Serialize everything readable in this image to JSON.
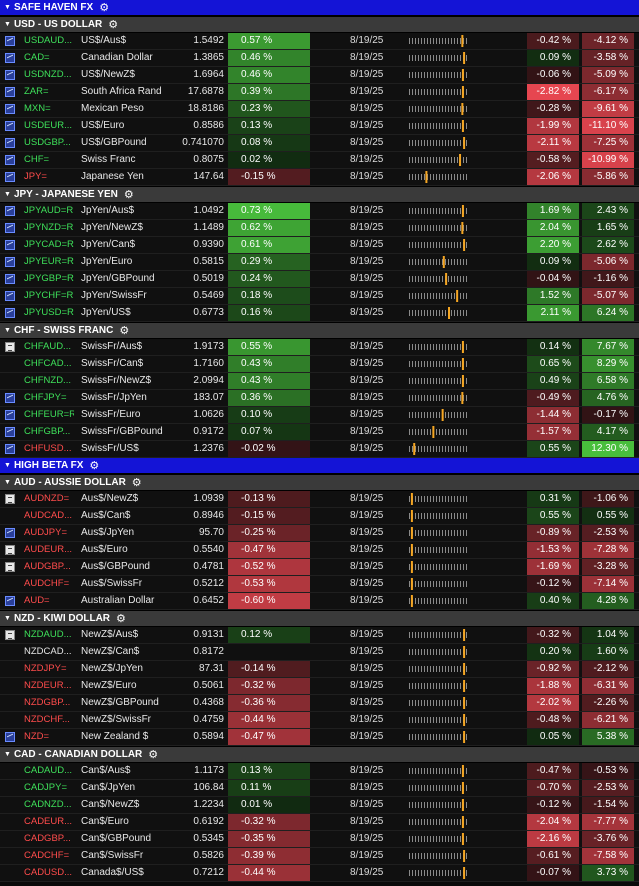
{
  "date_label": "8/19/25",
  "sections": [
    {
      "title": "SAFE HAVEN FX",
      "groups": [
        {
          "title": "USD - US DOLLAR",
          "rows": [
            {
              "icon": "chart",
              "ric": "USDAUD...",
              "ric_color": "up",
              "name": "US$/Aus$",
              "price": "1.5492",
              "pct": "0.57 %",
              "pct_val": 0.57,
              "c1": "-0.42 %",
              "c1_val": -0.42,
              "c2": "-4.12 %",
              "c2_val": -4.12,
              "pos": 0.92
            },
            {
              "icon": "chart",
              "ric": "CAD=",
              "ric_color": "up",
              "name": "Canadian Dollar",
              "price": "1.3865",
              "pct": "0.46 %",
              "pct_val": 0.46,
              "c1": "0.09 %",
              "c1_val": 0.09,
              "c2": "-3.58 %",
              "c2_val": -3.58,
              "pos": 0.95
            },
            {
              "icon": "chart",
              "ric": "USDNZD...",
              "ric_color": "up",
              "name": "US$/NewZ$",
              "price": "1.6964",
              "pct": "0.46 %",
              "pct_val": 0.46,
              "c1": "-0.06 %",
              "c1_val": -0.06,
              "c2": "-5.09 %",
              "c2_val": -5.09,
              "pos": 0.93
            },
            {
              "icon": "chart",
              "ric": "ZAR=",
              "ric_color": "up",
              "name": "South Africa Rand",
              "price": "17.6878",
              "pct": "0.39 %",
              "pct_val": 0.39,
              "c1": "-2.82 %",
              "c1_val": -2.82,
              "c2": "-6.17 %",
              "c2_val": -6.17,
              "pos": 0.93
            },
            {
              "icon": "chart",
              "ric": "MXN=",
              "ric_color": "up",
              "name": "Mexican Peso",
              "price": "18.8186",
              "pct": "0.23 %",
              "pct_val": 0.23,
              "c1": "-0.28 %",
              "c1_val": -0.28,
              "c2": "-9.61 %",
              "c2_val": -9.61,
              "pos": 0.92
            },
            {
              "icon": "chart",
              "ric": "USDEUR...",
              "ric_color": "up",
              "name": "US$/Euro",
              "price": "0.8586",
              "pct": "0.13 %",
              "pct_val": 0.13,
              "c1": "-1.99 %",
              "c1_val": -1.99,
              "c2": "-11.10 %",
              "c2_val": -11.1,
              "pos": 0.93
            },
            {
              "icon": "chart",
              "ric": "USDGBP...",
              "ric_color": "up",
              "name": "US$/GBPound",
              "price": "0.741070",
              "pct": "0.08 %",
              "pct_val": 0.08,
              "c1": "-2.11 %",
              "c1_val": -2.11,
              "c2": "-7.25 %",
              "c2_val": -7.25,
              "pos": 0.95
            },
            {
              "icon": "chart",
              "ric": "CHF=",
              "ric_color": "up",
              "name": "Swiss Franc",
              "price": "0.8075",
              "pct": "0.02 %",
              "pct_val": 0.02,
              "c1": "-0.58 %",
              "c1_val": -0.58,
              "c2": "-10.99 %",
              "c2_val": -10.99,
              "pos": 0.88
            },
            {
              "icon": "chart",
              "ric": "JPY=",
              "ric_color": "dn",
              "name": "Japanese Yen",
              "price": "147.64",
              "pct": "-0.15 %",
              "pct_val": -0.15,
              "c1": "-2.06 %",
              "c1_val": -2.06,
              "c2": "-5.86 %",
              "c2_val": -5.86,
              "pos": 0.3
            }
          ]
        },
        {
          "title": "JPY - JAPANESE YEN",
          "rows": [
            {
              "icon": "chart",
              "ric": "JPYAUD=R",
              "ric_color": "up",
              "name": "JpYen/Aus$",
              "price": "1.0492",
              "pct": "0.73 %",
              "pct_val": 0.73,
              "c1": "1.69 %",
              "c1_val": 1.69,
              "c2": "2.43 %",
              "c2_val": 2.43,
              "pos": 0.93
            },
            {
              "icon": "chart",
              "ric": "JPYNZD=R",
              "ric_color": "up",
              "name": "JpYen/NewZ$",
              "price": "1.1489",
              "pct": "0.62 %",
              "pct_val": 0.62,
              "c1": "2.04 %",
              "c1_val": 2.04,
              "c2": "1.65 %",
              "c2_val": 1.65,
              "pos": 0.92
            },
            {
              "icon": "chart",
              "ric": "JPYCAD=R",
              "ric_color": "up",
              "name": "JpYen/Can$",
              "price": "0.9390",
              "pct": "0.61 %",
              "pct_val": 0.61,
              "c1": "2.20 %",
              "c1_val": 2.2,
              "c2": "2.62 %",
              "c2_val": 2.62,
              "pos": 0.95
            },
            {
              "icon": "chart",
              "ric": "JPYEUR=R",
              "ric_color": "up",
              "name": "JpYen/Euro",
              "price": "0.5815",
              "pct": "0.29 %",
              "pct_val": 0.29,
              "c1": "0.09 %",
              "c1_val": 0.09,
              "c2": "-5.06 %",
              "c2_val": -5.06,
              "pos": 0.6
            },
            {
              "icon": "chart",
              "ric": "JPYGBP=R",
              "ric_color": "up",
              "name": "JpYen/GBPound",
              "price": "0.5019",
              "pct": "0.24 %",
              "pct_val": 0.24,
              "c1": "-0.04 %",
              "c1_val": -0.04,
              "c2": "-1.16 %",
              "c2_val": -1.16,
              "pos": 0.64
            },
            {
              "icon": "chart",
              "ric": "JPYCHF=R",
              "ric_color": "up",
              "name": "JpYen/SwissFr",
              "price": "0.5469",
              "pct": "0.18 %",
              "pct_val": 0.18,
              "c1": "1.52 %",
              "c1_val": 1.52,
              "c2": "-5.07 %",
              "c2_val": -5.07,
              "pos": 0.83
            },
            {
              "icon": "chart",
              "ric": "JPYUSD=R",
              "ric_color": "up",
              "name": "JpYen/US$",
              "price": "0.6773",
              "pct": "0.16 %",
              "pct_val": 0.16,
              "c1": "2.11 %",
              "c1_val": 2.11,
              "c2": "6.24 %",
              "c2_val": 6.24,
              "pos": 0.69
            }
          ]
        },
        {
          "title": "CHF - SWISS FRANC",
          "rows": [
            {
              "icon": "news",
              "ric": "CHFAUD...",
              "ric_color": "up",
              "name": "SwissFr/Aus$",
              "price": "1.9173",
              "pct": "0.55 %",
              "pct_val": 0.55,
              "c1": "0.14 %",
              "c1_val": 0.14,
              "c2": "7.67 %",
              "c2_val": 7.67,
              "pos": 0.93
            },
            {
              "icon": "none",
              "ric": "CHFCAD...",
              "ric_color": "up",
              "name": "SwissFr/Can$",
              "price": "1.7160",
              "pct": "0.43 %",
              "pct_val": 0.43,
              "c1": "0.65 %",
              "c1_val": 0.65,
              "c2": "8.29 %",
              "c2_val": 8.29,
              "pos": 0.93
            },
            {
              "icon": "none",
              "ric": "CHFNZD...",
              "ric_color": "up",
              "name": "SwissFr/NewZ$",
              "price": "2.0994",
              "pct": "0.43 %",
              "pct_val": 0.43,
              "c1": "0.49 %",
              "c1_val": 0.49,
              "c2": "6.58 %",
              "c2_val": 6.58,
              "pos": 0.93
            },
            {
              "icon": "chart",
              "ric": "CHFJPY=",
              "ric_color": "up",
              "name": "SwissFr/JpYen",
              "price": "183.07",
              "pct": "0.36 %",
              "pct_val": 0.36,
              "c1": "-0.49 %",
              "c1_val": -0.49,
              "c2": "4.76 %",
              "c2_val": 4.76,
              "pos": 0.92
            },
            {
              "icon": "chart",
              "ric": "CHFEUR=R",
              "ric_color": "up",
              "name": "SwissFr/Euro",
              "price": "1.0626",
              "pct": "0.10 %",
              "pct_val": 0.1,
              "c1": "-1.44 %",
              "c1_val": -1.44,
              "c2": "-0.17 %",
              "c2_val": -0.17,
              "pos": 0.58
            },
            {
              "icon": "chart",
              "ric": "CHFGBP...",
              "ric_color": "up",
              "name": "SwissFr/GBPound",
              "price": "0.9172",
              "pct": "0.07 %",
              "pct_val": 0.07,
              "c1": "-1.57 %",
              "c1_val": -1.57,
              "c2": "4.17 %",
              "c2_val": 4.17,
              "pos": 0.42
            },
            {
              "icon": "chart",
              "ric": "CHFUSD...",
              "ric_color": "dn",
              "name": "SwissFr/US$",
              "price": "1.2376",
              "pct": "-0.02 %",
              "pct_val": -0.02,
              "c1": "0.55 %",
              "c1_val": 0.55,
              "c2": "12.30 %",
              "c2_val": 12.3,
              "pos": 0.09
            }
          ]
        }
      ]
    },
    {
      "title": "HIGH BETA FX",
      "groups": [
        {
          "title": "AUD - AUSSIE DOLLAR",
          "rows": [
            {
              "icon": "news",
              "ric": "AUDNZD=",
              "ric_color": "dn",
              "name": "Aus$/NewZ$",
              "price": "1.0939",
              "pct": "-0.13 %",
              "pct_val": -0.13,
              "c1": "0.31 %",
              "c1_val": 0.31,
              "c2": "-1.06 %",
              "c2_val": -1.06,
              "pos": 0.05
            },
            {
              "icon": "none",
              "ric": "AUDCAD...",
              "ric_color": "dn",
              "name": "Aus$/Can$",
              "price": "0.8946",
              "pct": "-0.15 %",
              "pct_val": -0.15,
              "c1": "0.55 %",
              "c1_val": 0.55,
              "c2": "0.55 %",
              "c2_val": 0.55,
              "pos": 0.05
            },
            {
              "icon": "chart",
              "ric": "AUDJPY=",
              "ric_color": "dn",
              "name": "Aus$/JpYen",
              "price": "95.70",
              "pct": "-0.25 %",
              "pct_val": -0.25,
              "c1": "-0.89 %",
              "c1_val": -0.89,
              "c2": "-2.53 %",
              "c2_val": -2.53,
              "pos": 0.05
            },
            {
              "icon": "news",
              "ric": "AUDEUR...",
              "ric_color": "dn",
              "name": "Aus$/Euro",
              "price": "0.5540",
              "pct": "-0.47 %",
              "pct_val": -0.47,
              "c1": "-1.53 %",
              "c1_val": -1.53,
              "c2": "-7.28 %",
              "c2_val": -7.28,
              "pos": 0.05
            },
            {
              "icon": "news",
              "ric": "AUDGBP...",
              "ric_color": "dn",
              "name": "Aus$/GBPound",
              "price": "0.4781",
              "pct": "-0.52 %",
              "pct_val": -0.52,
              "c1": "-1.69 %",
              "c1_val": -1.69,
              "c2": "-3.28 %",
              "c2_val": -3.28,
              "pos": 0.05
            },
            {
              "icon": "none",
              "ric": "AUDCHF=",
              "ric_color": "dn",
              "name": "Aus$/SwissFr",
              "price": "0.5212",
              "pct": "-0.53 %",
              "pct_val": -0.53,
              "c1": "-0.12 %",
              "c1_val": -0.12,
              "c2": "-7.14 %",
              "c2_val": -7.14,
              "pos": 0.05
            },
            {
              "icon": "chart",
              "ric": "AUD=",
              "ric_color": "dn",
              "name": "Australian Dollar",
              "price": "0.6452",
              "pct": "-0.60 %",
              "pct_val": -0.6,
              "c1": "0.40 %",
              "c1_val": 0.4,
              "c2": "4.28 %",
              "c2_val": 4.28,
              "pos": 0.05
            }
          ]
        },
        {
          "title": "NZD - KIWI DOLLAR",
          "rows": [
            {
              "icon": "news",
              "ric": "NZDAUD...",
              "ric_color": "up",
              "name": "NewZ$/Aus$",
              "price": "0.9131",
              "pct": "0.12 %",
              "pct_val": 0.12,
              "c1": "-0.32 %",
              "c1_val": -0.32,
              "c2": "1.04 %",
              "c2_val": 1.04,
              "pos": 0.95
            },
            {
              "icon": "none",
              "ric": "NZDCAD...",
              "ric_color": "wh",
              "name": "NewZ$/Can$",
              "price": "0.8172",
              "pct": "",
              "pct_val": 0,
              "c1": "0.20 %",
              "c1_val": 0.2,
              "c2": "1.60 %",
              "c2_val": 1.6,
              "pos": 0.95
            },
            {
              "icon": "none",
              "ric": "NZDJPY=",
              "ric_color": "dn",
              "name": "NewZ$/JpYen",
              "price": "87.31",
              "pct": "-0.14 %",
              "pct_val": -0.14,
              "c1": "-0.92 %",
              "c1_val": -0.92,
              "c2": "-2.12 %",
              "c2_val": -2.12,
              "pos": 0.95
            },
            {
              "icon": "none",
              "ric": "NZDEUR...",
              "ric_color": "dn",
              "name": "NewZ$/Euro",
              "price": "0.5061",
              "pct": "-0.32 %",
              "pct_val": -0.32,
              "c1": "-1.88 %",
              "c1_val": -1.88,
              "c2": "-6.31 %",
              "c2_val": -6.31,
              "pos": 0.95
            },
            {
              "icon": "none",
              "ric": "NZDGBP...",
              "ric_color": "dn",
              "name": "NewZ$/GBPound",
              "price": "0.4368",
              "pct": "-0.36 %",
              "pct_val": -0.36,
              "c1": "-2.02 %",
              "c1_val": -2.02,
              "c2": "-2.26 %",
              "c2_val": -2.26,
              "pos": 0.95
            },
            {
              "icon": "none",
              "ric": "NZDCHF...",
              "ric_color": "dn",
              "name": "NewZ$/SwissFr",
              "price": "0.4759",
              "pct": "-0.44 %",
              "pct_val": -0.44,
              "c1": "-0.48 %",
              "c1_val": -0.48,
              "c2": "-6.21 %",
              "c2_val": -6.21,
              "pos": 0.95
            },
            {
              "icon": "chart",
              "ric": "NZD=",
              "ric_color": "dn",
              "name": "New Zealand $",
              "price": "0.5894",
              "pct": "-0.47 %",
              "pct_val": -0.47,
              "c1": "0.05 %",
              "c1_val": 0.05,
              "c2": "5.38 %",
              "c2_val": 5.38,
              "pos": 0.95
            }
          ]
        },
        {
          "title": "CAD - CANADIAN DOLLAR",
          "rows": [
            {
              "icon": "none",
              "ric": "CADAUD...",
              "ric_color": "up",
              "name": "Can$/Aus$",
              "price": "1.1173",
              "pct": "0.13 %",
              "pct_val": 0.13,
              "c1": "-0.47 %",
              "c1_val": -0.47,
              "c2": "-0.53 %",
              "c2_val": -0.53,
              "pos": 0.93
            },
            {
              "icon": "none",
              "ric": "CADJPY=",
              "ric_color": "up",
              "name": "Can$/JpYen",
              "price": "106.84",
              "pct": "0.11 %",
              "pct_val": 0.11,
              "c1": "-0.70 %",
              "c1_val": -0.7,
              "c2": "-2.53 %",
              "c2_val": -2.53,
              "pos": 0.93
            },
            {
              "icon": "none",
              "ric": "CADNZD...",
              "ric_color": "up",
              "name": "Can$/NewZ$",
              "price": "1.2234",
              "pct": "0.01 %",
              "pct_val": 0.01,
              "c1": "-0.12 %",
              "c1_val": -0.12,
              "c2": "-1.54 %",
              "c2_val": -1.54,
              "pos": 0.93
            },
            {
              "icon": "none",
              "ric": "CADEUR...",
              "ric_color": "dn",
              "name": "Can$/Euro",
              "price": "0.6192",
              "pct": "-0.32 %",
              "pct_val": -0.32,
              "c1": "-2.04 %",
              "c1_val": -2.04,
              "c2": "-7.77 %",
              "c2_val": -7.77,
              "pos": 0.93
            },
            {
              "icon": "none",
              "ric": "CADGBP...",
              "ric_color": "dn",
              "name": "Can$/GBPound",
              "price": "0.5345",
              "pct": "-0.35 %",
              "pct_val": -0.35,
              "c1": "-2.16 %",
              "c1_val": -2.16,
              "c2": "-3.76 %",
              "c2_val": -3.76,
              "pos": 0.93
            },
            {
              "icon": "none",
              "ric": "CADCHF=",
              "ric_color": "dn",
              "name": "Can$/SwissFr",
              "price": "0.5826",
              "pct": "-0.39 %",
              "pct_val": -0.39,
              "c1": "-0.61 %",
              "c1_val": -0.61,
              "c2": "-7.58 %",
              "c2_val": -7.58,
              "pos": 0.95
            },
            {
              "icon": "none",
              "ric": "CADUSD...",
              "ric_color": "dn",
              "name": "Canada$/US$",
              "price": "0.7212",
              "pct": "-0.44 %",
              "pct_val": -0.44,
              "c1": "-0.07 %",
              "c1_val": -0.07,
              "c2": "3.73 %",
              "c2_val": 3.73,
              "pos": 0.95
            }
          ]
        }
      ]
    }
  ]
}
